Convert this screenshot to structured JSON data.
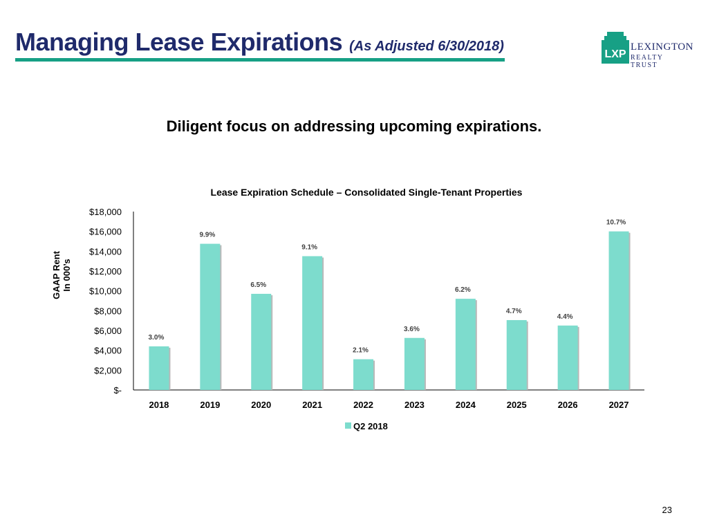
{
  "header": {
    "title": "Managing Lease Expirations",
    "title_note": "(As Adjusted 6/30/2018)",
    "logo_mark": "LXP",
    "logo_line1": "LEXINGTON",
    "logo_line2": "REALTY TRUST"
  },
  "subtitle": "Diligent focus on addressing upcoming expirations.",
  "page_number": "23",
  "colors": {
    "title": "#1f2a6b",
    "rule": "#17a085",
    "bar": "#7ddccd",
    "logo": "#17a085"
  },
  "chart_data": {
    "type": "bar",
    "title": "Lease Expiration Schedule – Consolidated Single-Tenant Properties",
    "ylabel_line1": "GAAP Rent",
    "ylabel_line2": "In 000’s",
    "xlabel": "",
    "ylim": [
      0,
      18000
    ],
    "yticks": [
      0,
      2000,
      4000,
      6000,
      8000,
      10000,
      12000,
      14000,
      16000,
      18000
    ],
    "ytick_labels": [
      "$-",
      "$2,000",
      "$4,000",
      "$6,000",
      "$8,000",
      "$10,000",
      "$12,000",
      "$14,000",
      "$16,000",
      "$18,000"
    ],
    "categories": [
      "2018",
      "2019",
      "2020",
      "2021",
      "2022",
      "2023",
      "2024",
      "2025",
      "2026",
      "2027"
    ],
    "series": [
      {
        "name": "Q2 2018",
        "values": [
          4400,
          14750,
          9700,
          13500,
          3100,
          5250,
          9200,
          7050,
          6500,
          16000
        ],
        "labels": [
          "3.0%",
          "9.9%",
          "6.5%",
          "9.1%",
          "2.1%",
          "3.6%",
          "6.2%",
          "4.7%",
          "4.4%",
          "10.7%"
        ]
      }
    ],
    "legend": "bottom-center",
    "grid": false
  }
}
